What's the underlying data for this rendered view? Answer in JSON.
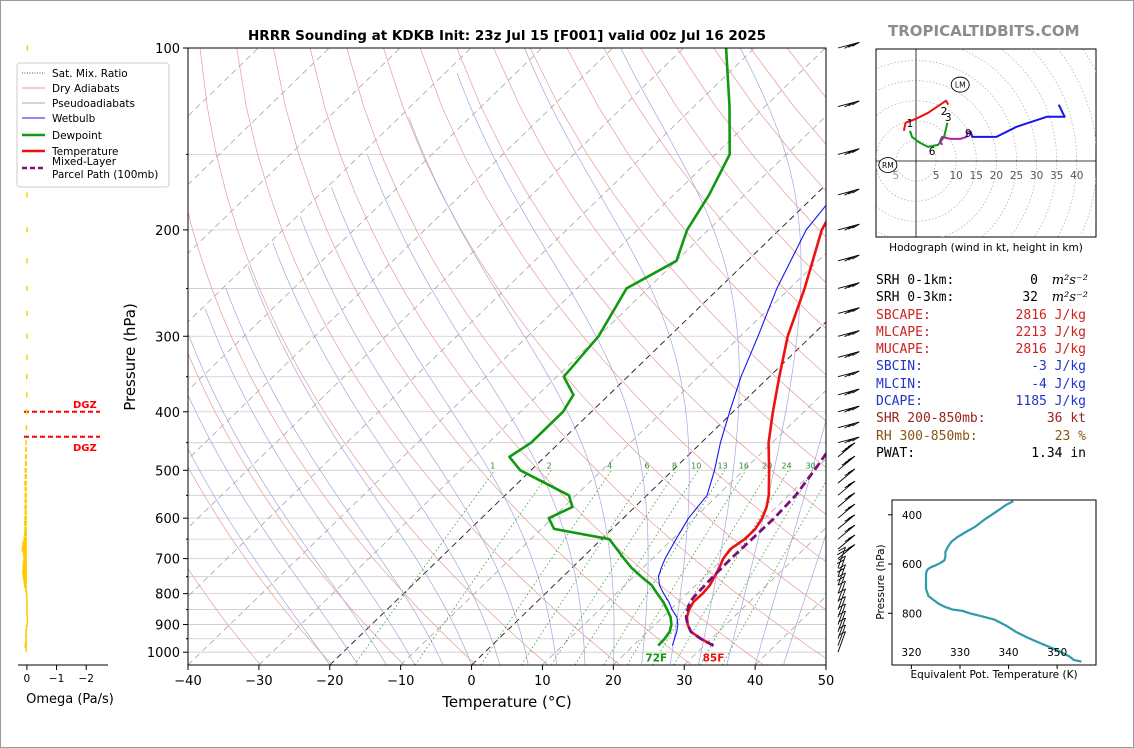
{
  "site": {
    "brand": "TROPICALTIDBITS.COM"
  },
  "chart_data": [
    {
      "type": "line",
      "id": "skewt",
      "title": "HRRR Sounding at KDKB Init: 23z Jul 15 [F001] valid 00z Jul 16 2025",
      "xlabel": "Temperature (°C)",
      "ylabel": "Pressure (hPa)",
      "xlim": [
        -40,
        50
      ],
      "ylim": [
        1050,
        100
      ],
      "y_scale": "log",
      "skew": true,
      "x_ticks": [
        "−40",
        "−30",
        "−20",
        "−10",
        "0",
        "10",
        "20",
        "30",
        "40",
        "50"
      ],
      "y_ticks": [
        "100",
        "200",
        "300",
        "400",
        "500",
        "600",
        "700",
        "800",
        "900",
        "1000"
      ],
      "legend": [
        {
          "name": "Sat. Mix. Ratio",
          "color": "#555555",
          "style": "dotted"
        },
        {
          "name": "Dry Adiabats",
          "color": "#e89a9a",
          "style": "solid"
        },
        {
          "name": "Pseudoadiabats",
          "color": "#aaaaaa",
          "style": "solid"
        },
        {
          "name": "Wetbulb",
          "color": "#1515ee",
          "style": "solid"
        },
        {
          "name": "Dewpoint",
          "color": "#119911",
          "style": "solid"
        },
        {
          "name": "Temperature",
          "color": "#ee1111",
          "style": "solid"
        },
        {
          "name": "Mixed-Layer Parcel Path (100mb)",
          "color": "#7a0f7a",
          "style": "dashed"
        }
      ],
      "legend_loc": "upper-left",
      "mix_ratio_labels": [
        "1",
        "2",
        "4",
        "6",
        "8",
        "10",
        "13",
        "16",
        "20",
        "24",
        "30",
        "36"
      ],
      "surface_labels": {
        "dewpoint": "72F",
        "temperature": "85F"
      },
      "series": [
        {
          "name": "Temperature",
          "color": "#ee1111",
          "points": [
            [
              975,
              31.3
            ],
            [
              950,
              28.5
            ],
            [
              925,
              26.1
            ],
            [
              900,
              24.6
            ],
            [
              875,
              23.4
            ],
            [
              850,
              22.6
            ],
            [
              825,
              22.1
            ],
            [
              800,
              22.2
            ],
            [
              775,
              22.0
            ],
            [
              750,
              21.4
            ],
            [
              725,
              20.8
            ],
            [
              700,
              20.0
            ],
            [
              675,
              19.6
            ],
            [
              650,
              20.2
            ],
            [
              625,
              20.2
            ],
            [
              600,
              19.6
            ],
            [
              575,
              18.6
            ],
            [
              550,
              17.2
            ],
            [
              500,
              13.6
            ],
            [
              450,
              9.5
            ],
            [
              400,
              5.6
            ],
            [
              350,
              1.4
            ],
            [
              300,
              -3.3
            ],
            [
              250,
              -7.9
            ],
            [
              200,
              -14.0
            ],
            [
              175,
              -16.4
            ],
            [
              150,
              -14.8
            ],
            [
              125,
              -10.6
            ],
            [
              100,
              -2.9
            ]
          ]
        },
        {
          "name": "Dewpoint",
          "color": "#119911",
          "points": [
            [
              975,
              23.5
            ],
            [
              950,
              23.4
            ],
            [
              925,
              23.1
            ],
            [
              900,
              22.3
            ],
            [
              875,
              21.1
            ],
            [
              850,
              19.5
            ],
            [
              825,
              17.8
            ],
            [
              800,
              15.8
            ],
            [
              775,
              13.8
            ],
            [
              750,
              11.1
            ],
            [
              725,
              8.4
            ],
            [
              700,
              6.0
            ],
            [
              650,
              1.1
            ],
            [
              625,
              -8.2
            ],
            [
              600,
              -10.5
            ],
            [
              575,
              -8.8
            ],
            [
              550,
              -11.0
            ],
            [
              500,
              -21.5
            ],
            [
              475,
              -25.0
            ],
            [
              450,
              -24.0
            ],
            [
              400,
              -24.0
            ],
            [
              375,
              -25.0
            ],
            [
              350,
              -29.0
            ],
            [
              300,
              -30.0
            ],
            [
              250,
              -33.0
            ],
            [
              225,
              -30.0
            ],
            [
              200,
              -33.0
            ],
            [
              175,
              -35.0
            ],
            [
              150,
              -38.0
            ],
            [
              125,
              -45.0
            ],
            [
              100,
              -54.0
            ]
          ]
        },
        {
          "name": "Wetbulb",
          "color": "#1515ee",
          "points": [
            [
              975,
              25.5
            ],
            [
              950,
              24.8
            ],
            [
              925,
              24.1
            ],
            [
              900,
              23.2
            ],
            [
              875,
              22.0
            ],
            [
              850,
              20.2
            ],
            [
              825,
              18.6
            ],
            [
              800,
              16.7
            ],
            [
              775,
              14.9
            ],
            [
              750,
              13.5
            ],
            [
              725,
              12.6
            ],
            [
              700,
              11.8
            ],
            [
              650,
              10.5
            ],
            [
              600,
              9.2
            ],
            [
              550,
              8.5
            ],
            [
              500,
              5.9
            ],
            [
              450,
              2.7
            ],
            [
              400,
              -0.5
            ],
            [
              350,
              -4.0
            ],
            [
              300,
              -7.5
            ],
            [
              250,
              -11.8
            ],
            [
              200,
              -16.2
            ],
            [
              175,
              -17.3
            ]
          ]
        },
        {
          "name": "Mixed-Layer Parcel Path (100mb)",
          "color": "#7a0f7a",
          "points": [
            [
              975,
              31.3
            ],
            [
              950,
              28.5
            ],
            [
              925,
              26.1
            ],
            [
              900,
              24.6
            ],
            [
              875,
              23.3
            ],
            [
              850,
              22.4
            ],
            [
              825,
              21.6
            ],
            [
              800,
              21.4
            ],
            [
              775,
              21.3
            ],
            [
              750,
              21.2
            ],
            [
              700,
              21.1
            ],
            [
              650,
              21.2
            ],
            [
              600,
              21.3
            ],
            [
              550,
              21.0
            ],
            [
              500,
              20.0
            ],
            [
              450,
              18.7
            ],
            [
              400,
              17.0
            ],
            [
              350,
              15.0
            ],
            [
              300,
              12.5
            ],
            [
              250,
              10.0
            ],
            [
              200,
              5.5
            ],
            [
              175,
              3.0
            ],
            [
              150,
              -1.5
            ],
            [
              125,
              -9.0
            ],
            [
              100,
              -19.0
            ]
          ]
        }
      ],
      "dgz": [
        {
          "p": 400,
          "label": "DGZ"
        },
        {
          "p": 440,
          "label": "DGZ"
        }
      ]
    },
    {
      "type": "bar",
      "id": "omega",
      "xlabel": "Omega (Pa/s)",
      "x_ticks": [
        "0",
        "−1",
        "−2"
      ],
      "xlim": [
        0.3,
        -2.6
      ],
      "color": "#ffcc00",
      "values": [
        [
          990,
          0.05
        ],
        [
          975,
          0.08
        ],
        [
          962,
          0.06
        ],
        [
          950,
          0.05
        ],
        [
          938,
          0.06
        ],
        [
          925,
          0.05
        ],
        [
          912,
          0.04
        ],
        [
          900,
          0.02
        ],
        [
          887,
          0.01
        ],
        [
          875,
          0.01
        ],
        [
          862,
          0.02
        ],
        [
          850,
          0.02
        ],
        [
          838,
          0.02
        ],
        [
          825,
          0.02
        ],
        [
          812,
          0.03
        ],
        [
          800,
          0.04
        ],
        [
          787,
          0.06
        ],
        [
          775,
          0.1
        ],
        [
          762,
          0.12
        ],
        [
          750,
          0.14
        ],
        [
          737,
          0.16
        ],
        [
          725,
          0.15
        ],
        [
          712,
          0.14
        ],
        [
          700,
          0.12
        ],
        [
          687,
          0.14
        ],
        [
          675,
          0.18
        ],
        [
          662,
          0.16
        ],
        [
          650,
          0.12
        ],
        [
          637,
          0.1
        ],
        [
          625,
          0.09
        ],
        [
          612,
          0.1
        ],
        [
          600,
          0.09
        ],
        [
          587,
          0.08
        ],
        [
          575,
          0.09
        ],
        [
          562,
          0.08
        ],
        [
          550,
          0.08
        ],
        [
          537,
          0.08
        ],
        [
          525,
          0.09
        ],
        [
          512,
          0.08
        ],
        [
          500,
          0.08
        ],
        [
          487,
          0.07
        ],
        [
          475,
          0.07
        ],
        [
          462,
          0.06
        ],
        [
          450,
          0.05
        ],
        [
          425,
          0.04
        ],
        [
          400,
          0.03
        ],
        [
          375,
          0.03
        ],
        [
          350,
          0.03
        ],
        [
          325,
          0.02
        ],
        [
          300,
          0.02
        ],
        [
          275,
          0.02
        ],
        [
          250,
          0.02
        ],
        [
          225,
          0.02
        ],
        [
          200,
          0.02
        ],
        [
          175,
          0.02
        ],
        [
          150,
          0.02
        ],
        [
          125,
          0.02
        ],
        [
          100,
          0.01
        ]
      ]
    },
    {
      "type": "line",
      "id": "hodograph",
      "xlabel": "Hodograph (wind in kt, height in km)",
      "x_ticks": [
        "5",
        "5",
        "10",
        "15",
        "20",
        "25",
        "30",
        "35",
        "40"
      ],
      "labels": [
        "LM",
        "RM",
        "1",
        "2",
        "3",
        "6",
        "9"
      ],
      "series": [
        {
          "name": "0-1km",
          "color": "#ee1111",
          "points": [
            [
              -3.0,
              7.5
            ],
            [
              -2.6,
              9.5
            ],
            [
              0,
              10.5
            ],
            [
              3.0,
              12.0
            ],
            [
              7.5,
              15.0
            ],
            [
              8.0,
              14.0
            ]
          ]
        },
        {
          "name": "1-3km",
          "color": "#119911",
          "points": [
            [
              -1.5,
              7.5
            ],
            [
              -1.0,
              6.0
            ],
            [
              1.0,
              4.5
            ],
            [
              3.0,
              3.5
            ],
            [
              5.5,
              4.0
            ],
            [
              7.0,
              6.0
            ],
            [
              7.8,
              9.5
            ]
          ]
        },
        {
          "name": "3-6km",
          "color": "#aa22aa",
          "points": [
            [
              6.5,
              4.0
            ],
            [
              6.0,
              5.0
            ],
            [
              6.5,
              6.0
            ],
            [
              8.5,
              5.5
            ],
            [
              11.0,
              5.5
            ],
            [
              12.5,
              6.0
            ],
            [
              13.0,
              7.5
            ]
          ]
        },
        {
          "name": "6-9km",
          "color": "#1515ee",
          "points": [
            [
              13.5,
              7.5
            ],
            [
              14.0,
              6.0
            ],
            [
              20.0,
              6.0
            ],
            [
              25.0,
              8.5
            ],
            [
              32.5,
              11.0
            ],
            [
              37.0,
              11.0
            ],
            [
              35.5,
              14.0
            ]
          ]
        }
      ],
      "markers": [
        {
          "label": "LM",
          "u": 11.0,
          "v": 19.0
        },
        {
          "label": "RM",
          "u": -7.0,
          "v": -1.0
        },
        {
          "label": "1",
          "u": -1.5,
          "v": 9.5
        },
        {
          "label": "2",
          "u": 7.0,
          "v": 12.5
        },
        {
          "label": "3",
          "u": 8.0,
          "v": 11.0
        },
        {
          "label": "6",
          "u": 4.0,
          "v": 2.5
        },
        {
          "label": "9",
          "u": 13.0,
          "v": 7.0
        }
      ]
    },
    {
      "type": "line",
      "id": "theta-e",
      "xlabel": "Equivalent Pot. Temperature (K)",
      "ylabel": "Pressure (hPa)",
      "x_ticks": [
        "320",
        "330",
        "340",
        "350"
      ],
      "y_ticks": [
        "400",
        "600",
        "800"
      ],
      "xlim": [
        316,
        358
      ],
      "ylim": [
        1010,
        340
      ],
      "color": "#2e9aaa",
      "points": [
        [
          996,
          355.0
        ],
        [
          990,
          353.5
        ],
        [
          975,
          352.5
        ],
        [
          950,
          350.0
        ],
        [
          925,
          347.0
        ],
        [
          900,
          344.0
        ],
        [
          875,
          341.5
        ],
        [
          850,
          339.5
        ],
        [
          825,
          337.0
        ],
        [
          810,
          334.0
        ],
        [
          800,
          332.0
        ],
        [
          790,
          330.5
        ],
        [
          785,
          328.5
        ],
        [
          775,
          327.0
        ],
        [
          760,
          325.5
        ],
        [
          745,
          324.5
        ],
        [
          730,
          323.5
        ],
        [
          700,
          323.0
        ],
        [
          680,
          323.0
        ],
        [
          660,
          323.0
        ],
        [
          640,
          323.0
        ],
        [
          625,
          323.2
        ],
        [
          615,
          323.8
        ],
        [
          605,
          325.0
        ],
        [
          595,
          326.0
        ],
        [
          585,
          326.8
        ],
        [
          570,
          327.0
        ],
        [
          550,
          327.0
        ],
        [
          530,
          327.5
        ],
        [
          510,
          328.2
        ],
        [
          490,
          329.5
        ],
        [
          470,
          331.2
        ],
        [
          450,
          333.0
        ],
        [
          420,
          335.0
        ],
        [
          400,
          336.5
        ],
        [
          380,
          338.0
        ],
        [
          360,
          339.5
        ],
        [
          345,
          341.0
        ]
      ]
    }
  ],
  "stats": [
    {
      "label": "SRH 0-1km:",
      "value": "0",
      "unit": "m²s⁻²",
      "color": "#000000"
    },
    {
      "label": "SRH 0-3km:",
      "value": "32",
      "unit": "m²s⁻²",
      "color": "#000000"
    },
    {
      "label": "SBCAPE:",
      "value": "2816 J/kg",
      "color": "#cc2222"
    },
    {
      "label": "MLCAPE:",
      "value": "2213 J/kg",
      "color": "#cc2222"
    },
    {
      "label": "MUCAPE:",
      "value": "2816 J/kg",
      "color": "#cc2222"
    },
    {
      "label": "SBCIN:",
      "value": "-3 J/kg",
      "color": "#2233cc"
    },
    {
      "label": "MLCIN:",
      "value": "-4 J/kg",
      "color": "#2233cc"
    },
    {
      "label": "DCAPE:",
      "value": "1185 J/kg",
      "color": "#2233cc"
    },
    {
      "label": "SHR 200-850mb:",
      "value": "36 kt",
      "color": "#992222"
    },
    {
      "label": "RH 300-850mb:",
      "value": "23 %",
      "color": "#885511"
    },
    {
      "label": "PWAT:",
      "value": "1.34 in",
      "color": "#000000"
    }
  ]
}
